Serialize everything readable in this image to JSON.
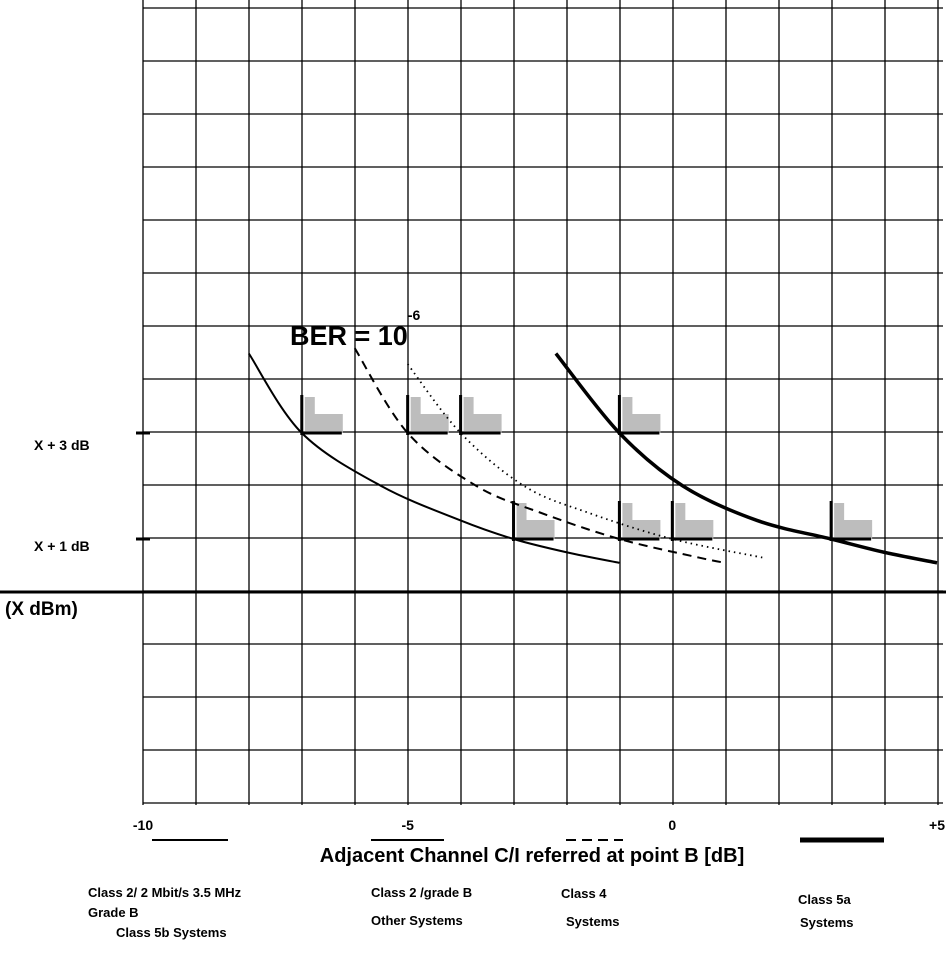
{
  "chart_data": {
    "type": "line",
    "title": "",
    "xlabel": "Adjacent Channel C/I referred at point B [dB]",
    "ylabel": "",
    "xlim": [
      -10,
      5
    ],
    "grid": true,
    "x_ticks": [
      {
        "value": -10,
        "label": "-10"
      },
      {
        "value": -5,
        "label": "-5"
      },
      {
        "value": 0,
        "label": "0"
      },
      {
        "value": 5,
        "label": "+5"
      }
    ],
    "y_ticks": [
      {
        "value": 3,
        "label": "X + 3 dB"
      },
      {
        "value": 1,
        "label": "X + 1 dB"
      },
      {
        "value": 0,
        "label": "(X dBm)"
      }
    ],
    "annotation": {
      "text": "BER = 10",
      "superscript": "-6"
    },
    "series": [
      {
        "name": "Class 2/ 2  Mbit/s 3.5 MHz Grade B Class 5b Systems",
        "style": "solid-thin",
        "x": [
          -8.0,
          -7.0,
          -5.5,
          -4.0,
          -3.0,
          -2.0,
          -1.0
        ],
        "y": [
          4.5,
          3.0,
          2.0,
          1.35,
          1.0,
          0.75,
          0.55
        ]
      },
      {
        "name": "Class 2 /grade B Other Systems",
        "style": "dashed",
        "x": [
          -6.0,
          -5.0,
          -3.7,
          -2.5,
          -1.0,
          0.5,
          1.0
        ],
        "y": [
          4.6,
          3.0,
          2.0,
          1.5,
          1.0,
          0.65,
          0.55
        ]
      },
      {
        "name": "Class 4 Systems",
        "style": "dotted",
        "x": [
          -5.0,
          -4.0,
          -2.8,
          -1.6,
          0.0,
          1.7
        ],
        "y": [
          4.3,
          3.0,
          2.0,
          1.5,
          1.0,
          0.65
        ]
      },
      {
        "name": "Class 5a Systems",
        "style": "solid-thick",
        "x": [
          -2.2,
          -1.0,
          0.2,
          1.6,
          3.0,
          4.0,
          5.0
        ],
        "y": [
          4.5,
          3.0,
          2.0,
          1.35,
          1.0,
          0.75,
          0.55
        ]
      }
    ],
    "markers": [
      {
        "x": -7.0,
        "y": 3.0
      },
      {
        "x": -5.0,
        "y": 3.0
      },
      {
        "x": -4.0,
        "y": 3.0
      },
      {
        "x": -1.0,
        "y": 3.0
      },
      {
        "x": -3.0,
        "y": 1.0
      },
      {
        "x": -1.0,
        "y": 1.0
      },
      {
        "x": 0.0,
        "y": 1.0
      },
      {
        "x": 3.0,
        "y": 1.0
      }
    ]
  }
}
